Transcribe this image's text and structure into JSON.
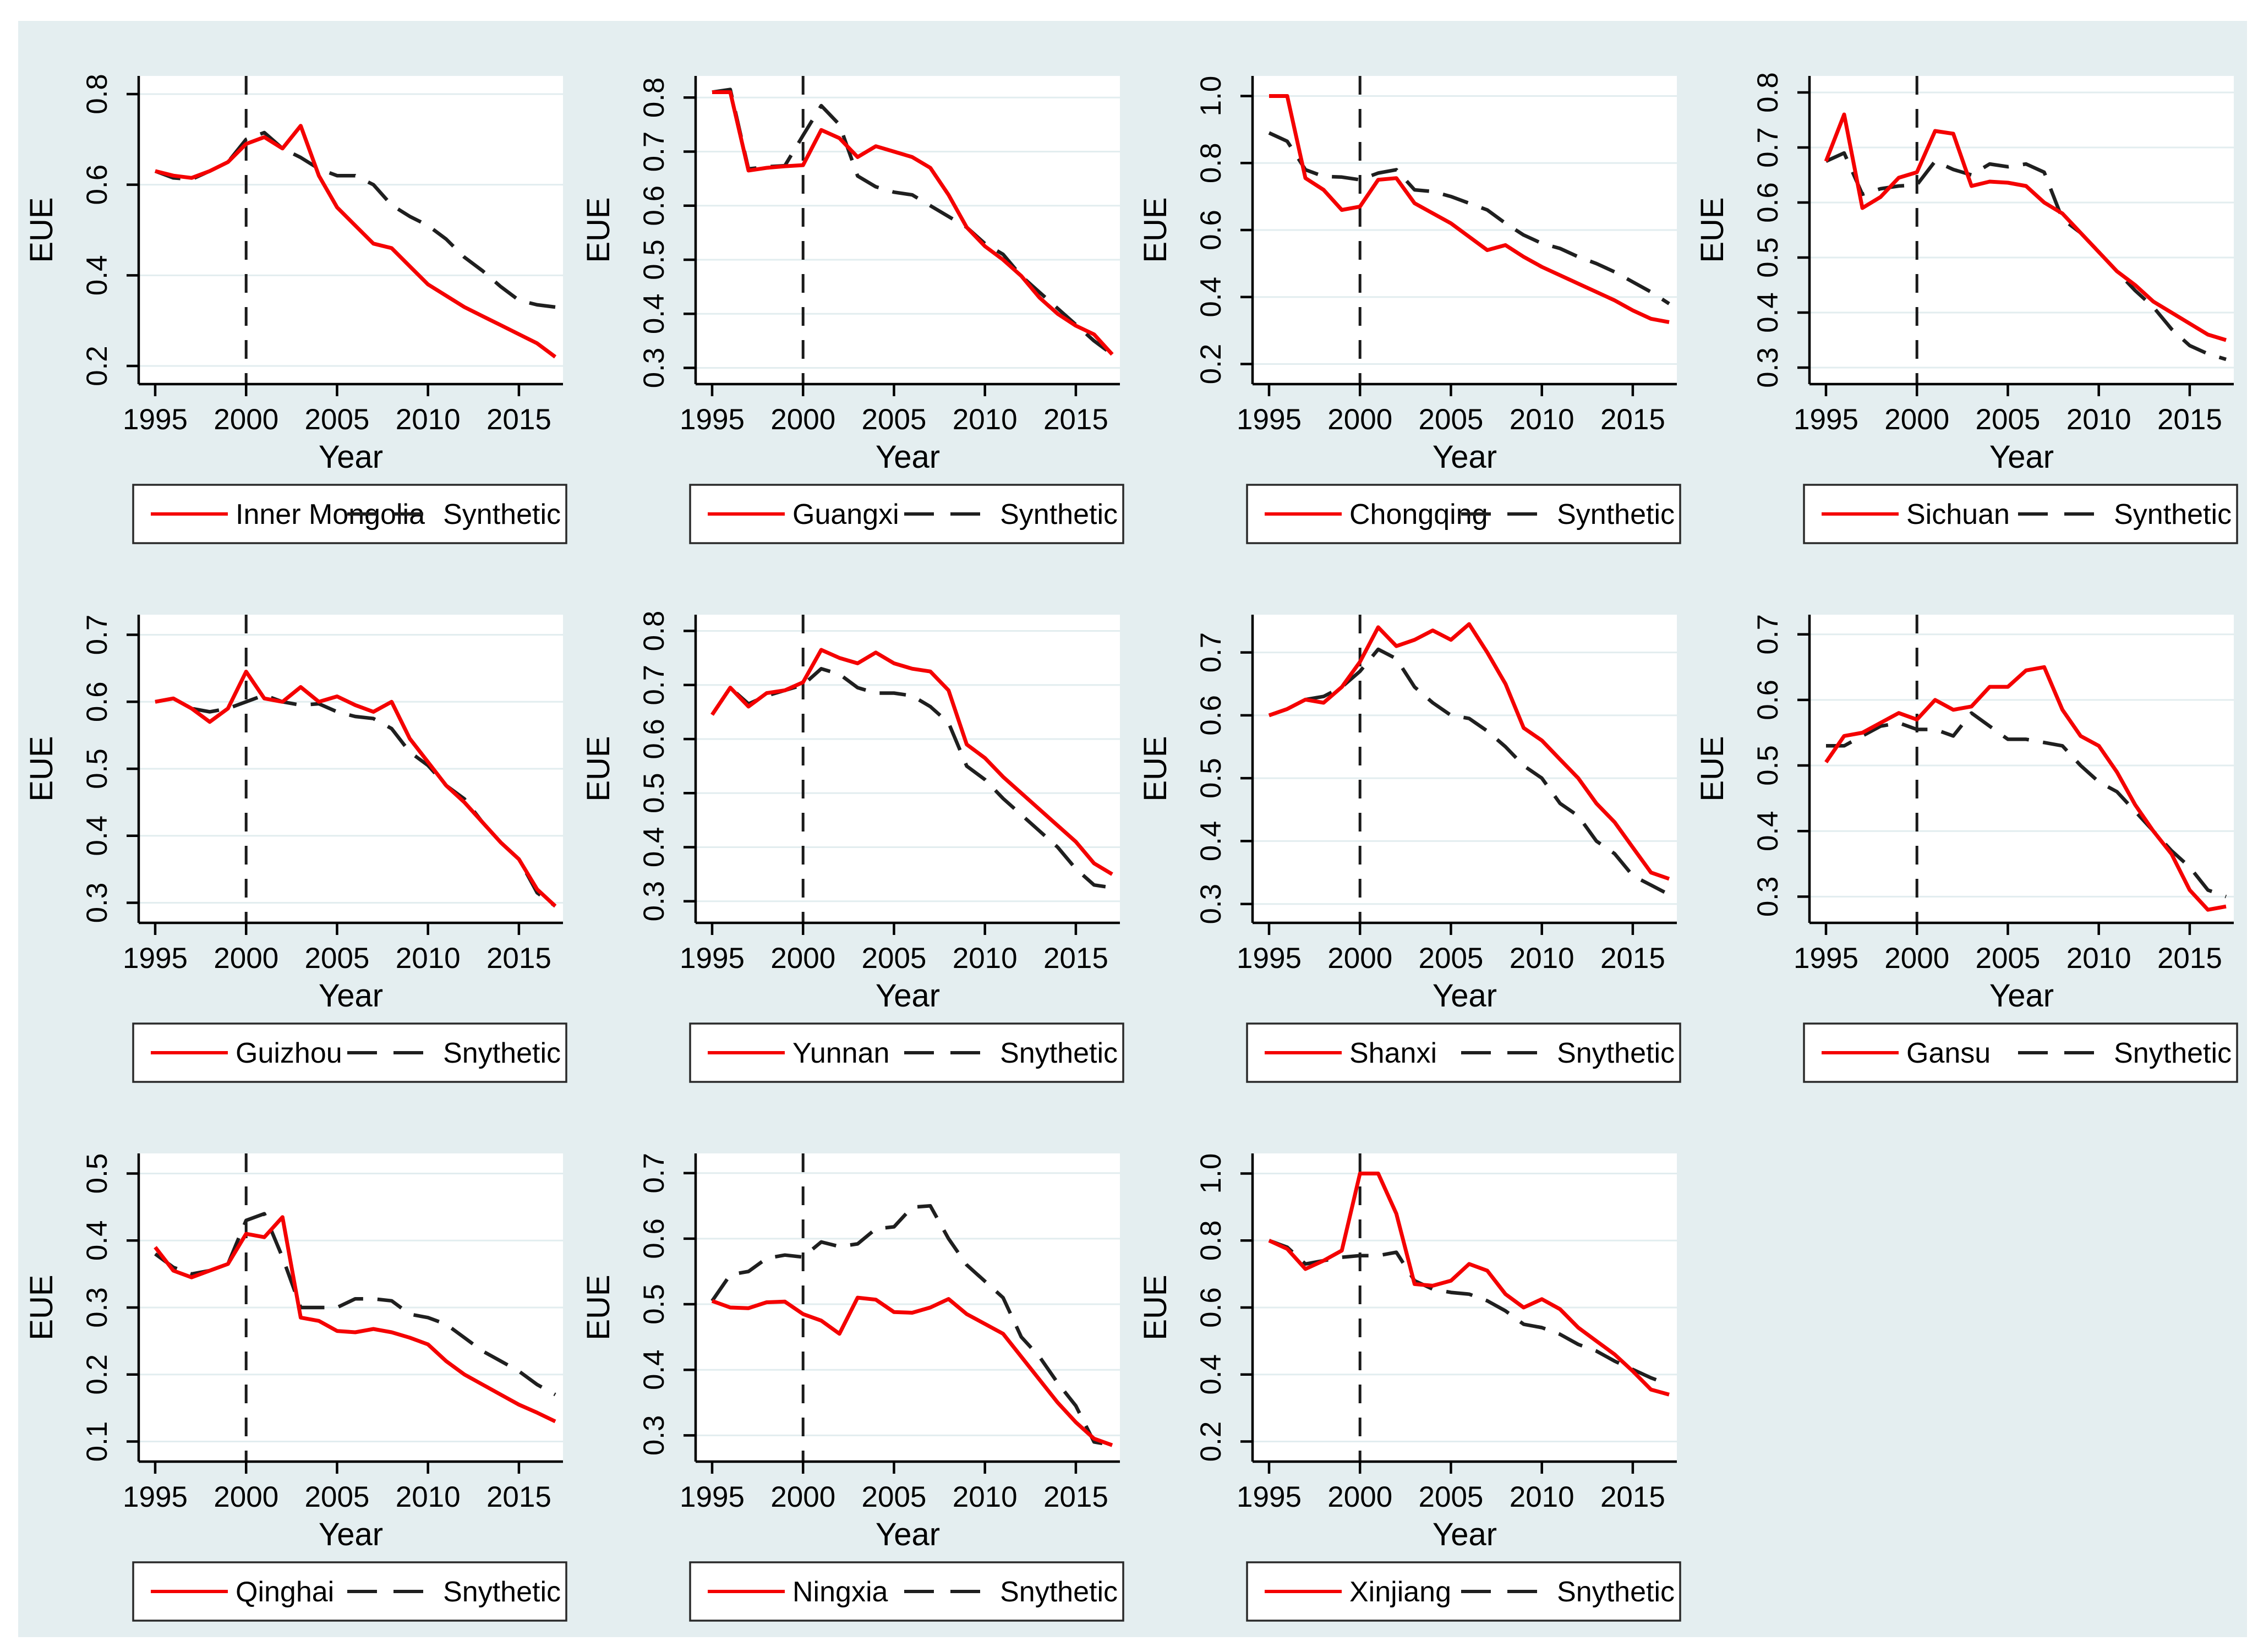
{
  "figure": {
    "page_background": "#ffffff",
    "background": "#e4eef0",
    "plot_background": "#ffffff",
    "grid_color": "#e2edef",
    "axis_color": "#000000",
    "treated_color": "#f40000",
    "synthetic_color": "#1f1f1f",
    "vline_color": "#1a1a1a",
    "legend_border_color": "#2a2a2a",
    "xlabel": "Year",
    "ylabel": "EUE",
    "treatment_year": 2000
  },
  "years": [
    1995,
    1996,
    1997,
    1998,
    1999,
    2000,
    2001,
    2002,
    2003,
    2004,
    2005,
    2006,
    2007,
    2008,
    2009,
    2010,
    2011,
    2012,
    2013,
    2014,
    2015,
    2016,
    2017
  ],
  "chart_data": [
    {
      "type": "line",
      "region": "Inner Mongolia",
      "xlabel": "Year",
      "ylabel": "EUE",
      "legend": [
        "Inner Mongolia",
        "Synthetic"
      ],
      "yticks": [
        0.2,
        0.4,
        0.6,
        0.8
      ],
      "ylim": [
        0.16,
        0.84
      ],
      "xticks": [
        1995,
        2000,
        2005,
        2010,
        2015
      ],
      "vline": 2000,
      "series": [
        {
          "name": "Inner Mongolia",
          "values": [
            0.63,
            0.62,
            0.615,
            0.63,
            0.65,
            0.69,
            0.705,
            0.68,
            0.73,
            0.62,
            0.55,
            0.51,
            0.47,
            0.46,
            0.42,
            0.38,
            0.355,
            0.33,
            0.31,
            0.29,
            0.27,
            0.25,
            0.22
          ]
        },
        {
          "name": "Synthetic",
          "values": [
            0.63,
            0.615,
            0.612,
            0.63,
            0.65,
            0.7,
            0.715,
            0.68,
            0.66,
            0.635,
            0.62,
            0.62,
            0.6,
            0.555,
            0.53,
            0.51,
            0.48,
            0.44,
            0.41,
            0.375,
            0.345,
            0.335,
            0.33
          ]
        }
      ]
    },
    {
      "type": "line",
      "region": "Guangxi",
      "xlabel": "Year",
      "ylabel": "EUE",
      "legend": [
        "Guangxi",
        "Synthetic"
      ],
      "yticks": [
        0.3,
        0.4,
        0.5,
        0.6,
        0.7,
        0.8
      ],
      "ylim": [
        0.27,
        0.84
      ],
      "xticks": [
        1995,
        2000,
        2005,
        2010,
        2015
      ],
      "vline": 2000,
      "series": [
        {
          "name": "Guangxi",
          "values": [
            0.81,
            0.81,
            0.665,
            0.67,
            0.673,
            0.675,
            0.74,
            0.725,
            0.69,
            0.71,
            0.7,
            0.69,
            0.67,
            0.62,
            0.56,
            0.525,
            0.5,
            0.47,
            0.43,
            0.4,
            0.378,
            0.362,
            0.325
          ]
        },
        {
          "name": "Synthetic",
          "values": [
            0.81,
            0.815,
            0.668,
            0.672,
            0.674,
            0.73,
            0.785,
            0.75,
            0.655,
            0.635,
            0.625,
            0.62,
            0.6,
            0.58,
            0.56,
            0.53,
            0.51,
            0.47,
            0.44,
            0.41,
            0.38,
            0.35,
            0.325
          ]
        }
      ]
    },
    {
      "type": "line",
      "region": "Chongqing",
      "xlabel": "Year",
      "ylabel": "EUE",
      "legend": [
        "Chongqing",
        "Synthetic"
      ],
      "yticks": [
        0.2,
        0.4,
        0.6,
        0.8,
        1.0
      ],
      "ylim": [
        0.14,
        1.06
      ],
      "xticks": [
        1995,
        2000,
        2005,
        2010,
        2015
      ],
      "vline": 2000,
      "series": [
        {
          "name": "Chongqing",
          "values": [
            1.0,
            1.0,
            0.755,
            0.72,
            0.66,
            0.67,
            0.75,
            0.755,
            0.68,
            0.65,
            0.62,
            0.58,
            0.54,
            0.555,
            0.52,
            0.49,
            0.465,
            0.44,
            0.415,
            0.39,
            0.36,
            0.335,
            0.325
          ]
        },
        {
          "name": "Synthetic",
          "values": [
            0.89,
            0.865,
            0.78,
            0.76,
            0.758,
            0.75,
            0.77,
            0.78,
            0.72,
            0.715,
            0.7,
            0.68,
            0.66,
            0.62,
            0.585,
            0.56,
            0.545,
            0.52,
            0.5,
            0.475,
            0.445,
            0.415,
            0.38
          ]
        }
      ]
    },
    {
      "type": "line",
      "region": "Sichuan",
      "xlabel": "Year",
      "ylabel": "EUE",
      "legend": [
        "Sichuan",
        "Synthetic"
      ],
      "yticks": [
        0.3,
        0.4,
        0.5,
        0.6,
        0.7,
        0.8
      ],
      "ylim": [
        0.27,
        0.83
      ],
      "xticks": [
        1995,
        2000,
        2005,
        2010,
        2015
      ],
      "vline": 2000,
      "series": [
        {
          "name": "Sichuan",
          "values": [
            0.675,
            0.76,
            0.59,
            0.61,
            0.645,
            0.655,
            0.73,
            0.725,
            0.63,
            0.638,
            0.636,
            0.63,
            0.6,
            0.58,
            0.545,
            0.51,
            0.475,
            0.45,
            0.42,
            0.4,
            0.38,
            0.36,
            0.35
          ]
        },
        {
          "name": "Synthetic",
          "values": [
            0.675,
            0.69,
            0.615,
            0.625,
            0.63,
            0.632,
            0.675,
            0.66,
            0.65,
            0.67,
            0.665,
            0.67,
            0.655,
            0.57,
            0.545,
            0.51,
            0.475,
            0.44,
            0.41,
            0.37,
            0.34,
            0.325,
            0.315
          ]
        }
      ]
    },
    {
      "type": "line",
      "region": "Guizhou",
      "xlabel": "Year",
      "ylabel": "EUE",
      "legend": [
        "Guizhou",
        "Snythetic"
      ],
      "yticks": [
        0.3,
        0.4,
        0.5,
        0.6,
        0.7
      ],
      "ylim": [
        0.27,
        0.73
      ],
      "xticks": [
        1995,
        2000,
        2005,
        2010,
        2015
      ],
      "vline": 2000,
      "series": [
        {
          "name": "Guizhou",
          "values": [
            0.6,
            0.605,
            0.59,
            0.57,
            0.59,
            0.645,
            0.605,
            0.6,
            0.622,
            0.6,
            0.608,
            0.595,
            0.585,
            0.6,
            0.545,
            0.51,
            0.475,
            0.45,
            0.42,
            0.39,
            0.365,
            0.32,
            0.295
          ]
        },
        {
          "name": "Snythetic",
          "values": [
            0.6,
            0.605,
            0.59,
            0.585,
            0.59,
            0.6,
            0.61,
            0.6,
            0.595,
            0.597,
            0.585,
            0.578,
            0.575,
            0.56,
            0.525,
            0.505,
            0.475,
            0.455,
            0.42,
            0.39,
            0.365,
            0.315,
            0.295
          ]
        }
      ]
    },
    {
      "type": "line",
      "region": "Yunnan",
      "xlabel": "Year",
      "ylabel": "EUE",
      "legend": [
        "Yunnan",
        "Snythetic"
      ],
      "yticks": [
        0.3,
        0.4,
        0.5,
        0.6,
        0.7,
        0.8
      ],
      "ylim": [
        0.26,
        0.83
      ],
      "xticks": [
        1995,
        2000,
        2005,
        2010,
        2015
      ],
      "vline": 2000,
      "series": [
        {
          "name": "Yunnan",
          "values": [
            0.645,
            0.695,
            0.66,
            0.685,
            0.69,
            0.705,
            0.765,
            0.75,
            0.74,
            0.76,
            0.74,
            0.73,
            0.725,
            0.69,
            0.59,
            0.565,
            0.53,
            0.5,
            0.47,
            0.44,
            0.41,
            0.37,
            0.35
          ]
        },
        {
          "name": "Snythetic",
          "values": [
            0.645,
            0.695,
            0.665,
            0.68,
            0.69,
            0.7,
            0.73,
            0.72,
            0.695,
            0.685,
            0.685,
            0.68,
            0.66,
            0.63,
            0.55,
            0.525,
            0.49,
            0.46,
            0.43,
            0.4,
            0.36,
            0.33,
            0.325
          ]
        }
      ]
    },
    {
      "type": "line",
      "region": "Shanxi",
      "xlabel": "Year",
      "ylabel": "EUE",
      "legend": [
        "Shanxi",
        "Snythetic"
      ],
      "yticks": [
        0.3,
        0.4,
        0.5,
        0.6,
        0.7
      ],
      "ylim": [
        0.27,
        0.76
      ],
      "xticks": [
        1995,
        2000,
        2005,
        2010,
        2015
      ],
      "vline": 2000,
      "series": [
        {
          "name": "Shanxi",
          "values": [
            0.6,
            0.61,
            0.625,
            0.62,
            0.645,
            0.685,
            0.74,
            0.71,
            0.72,
            0.735,
            0.72,
            0.745,
            0.7,
            0.65,
            0.58,
            0.56,
            0.53,
            0.5,
            0.46,
            0.43,
            0.39,
            0.35,
            0.34
          ]
        },
        {
          "name": "Snythetic",
          "values": [
            0.6,
            0.61,
            0.625,
            0.63,
            0.645,
            0.67,
            0.705,
            0.69,
            0.645,
            0.62,
            0.6,
            0.595,
            0.575,
            0.55,
            0.52,
            0.5,
            0.46,
            0.44,
            0.4,
            0.38,
            0.345,
            0.33,
            0.315
          ]
        }
      ]
    },
    {
      "type": "line",
      "region": "Gansu",
      "xlabel": "Year",
      "ylabel": "EUE",
      "legend": [
        "Gansu",
        "Snythetic"
      ],
      "yticks": [
        0.3,
        0.4,
        0.5,
        0.6,
        0.7
      ],
      "ylim": [
        0.26,
        0.73
      ],
      "xticks": [
        1995,
        2000,
        2005,
        2010,
        2015
      ],
      "vline": 2000,
      "series": [
        {
          "name": "Gansu",
          "values": [
            0.505,
            0.545,
            0.55,
            0.565,
            0.58,
            0.57,
            0.6,
            0.585,
            0.59,
            0.62,
            0.62,
            0.645,
            0.65,
            0.585,
            0.545,
            0.53,
            0.49,
            0.44,
            0.4,
            0.365,
            0.31,
            0.28,
            0.285
          ]
        },
        {
          "name": "Snythetic",
          "values": [
            0.53,
            0.53,
            0.545,
            0.56,
            0.565,
            0.555,
            0.555,
            0.545,
            0.58,
            0.56,
            0.54,
            0.54,
            0.535,
            0.53,
            0.5,
            0.475,
            0.46,
            0.43,
            0.4,
            0.37,
            0.345,
            0.31,
            0.3
          ]
        }
      ]
    },
    {
      "type": "line",
      "region": "Qinghai",
      "xlabel": "Year",
      "ylabel": "EUE",
      "legend": [
        "Qinghai",
        "Snythetic"
      ],
      "yticks": [
        0.1,
        0.2,
        0.3,
        0.4,
        0.5
      ],
      "ylim": [
        0.07,
        0.53
      ],
      "xticks": [
        1995,
        2000,
        2005,
        2010,
        2015
      ],
      "vline": 2000,
      "series": [
        {
          "name": "Qinghai",
          "values": [
            0.39,
            0.355,
            0.345,
            0.355,
            0.365,
            0.41,
            0.405,
            0.435,
            0.285,
            0.28,
            0.265,
            0.263,
            0.268,
            0.263,
            0.255,
            0.245,
            0.22,
            0.2,
            0.185,
            0.17,
            0.155,
            0.143,
            0.13
          ]
        },
        {
          "name": "Snythetic",
          "values": [
            0.38,
            0.36,
            0.35,
            0.355,
            0.365,
            0.43,
            0.44,
            0.375,
            0.3,
            0.3,
            0.3,
            0.313,
            0.313,
            0.31,
            0.29,
            0.285,
            0.275,
            0.255,
            0.235,
            0.22,
            0.205,
            0.185,
            0.17
          ]
        }
      ]
    },
    {
      "type": "line",
      "region": "Ningxia",
      "xlabel": "Year",
      "ylabel": "EUE",
      "legend": [
        "Ningxia",
        "Snythetic"
      ],
      "yticks": [
        0.3,
        0.4,
        0.5,
        0.6,
        0.7
      ],
      "ylim": [
        0.26,
        0.73
      ],
      "xticks": [
        1995,
        2000,
        2005,
        2010,
        2015
      ],
      "vline": 2000,
      "series": [
        {
          "name": "Ningxia",
          "values": [
            0.505,
            0.495,
            0.494,
            0.503,
            0.504,
            0.485,
            0.475,
            0.455,
            0.51,
            0.507,
            0.488,
            0.487,
            0.495,
            0.508,
            0.485,
            0.47,
            0.455,
            0.42,
            0.385,
            0.35,
            0.32,
            0.295,
            0.285
          ]
        },
        {
          "name": "Snythetic",
          "values": [
            0.505,
            0.545,
            0.55,
            0.57,
            0.575,
            0.572,
            0.595,
            0.588,
            0.592,
            0.615,
            0.618,
            0.648,
            0.65,
            0.6,
            0.56,
            0.535,
            0.51,
            0.45,
            0.42,
            0.38,
            0.345,
            0.29,
            0.285
          ]
        }
      ]
    },
    {
      "type": "line",
      "region": "Xinjiang",
      "xlabel": "Year",
      "ylabel": "EUE",
      "legend": [
        "Xinjiang",
        "Snythetic"
      ],
      "yticks": [
        0.2,
        0.4,
        0.6,
        0.8,
        1.0
      ],
      "ylim": [
        0.14,
        1.06
      ],
      "xticks": [
        1995,
        2000,
        2005,
        2010,
        2015
      ],
      "vline": 2000,
      "series": [
        {
          "name": "Xinjiang",
          "values": [
            0.8,
            0.775,
            0.715,
            0.74,
            0.77,
            1.0,
            1.0,
            0.88,
            0.67,
            0.665,
            0.68,
            0.73,
            0.71,
            0.64,
            0.6,
            0.625,
            0.595,
            0.54,
            0.5,
            0.46,
            0.41,
            0.355,
            0.34
          ]
        },
        {
          "name": "Snythetic",
          "values": [
            0.8,
            0.78,
            0.73,
            0.74,
            0.75,
            0.755,
            0.755,
            0.765,
            0.68,
            0.655,
            0.645,
            0.64,
            0.62,
            0.59,
            0.55,
            0.54,
            0.52,
            0.49,
            0.47,
            0.44,
            0.415,
            0.39,
            0.37
          ]
        }
      ]
    }
  ]
}
